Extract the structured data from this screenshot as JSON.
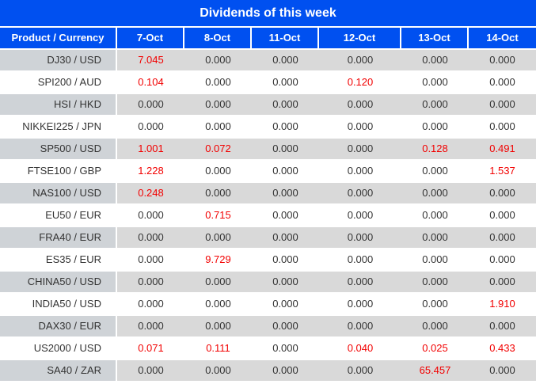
{
  "title": "Dividends of this week",
  "columns": [
    "Product / Currency",
    "7-Oct",
    "8-Oct",
    "11-Oct",
    "12-Oct",
    "13-Oct",
    "14-Oct"
  ],
  "rows": [
    {
      "product": "DJ30 / USD",
      "values": [
        {
          "v": "7.045",
          "red": true
        },
        {
          "v": "0.000",
          "red": false
        },
        {
          "v": "0.000",
          "red": false
        },
        {
          "v": "0.000",
          "red": false
        },
        {
          "v": "0.000",
          "red": false
        },
        {
          "v": "0.000",
          "red": false
        }
      ]
    },
    {
      "product": "SPI200 / AUD",
      "values": [
        {
          "v": "0.104",
          "red": true
        },
        {
          "v": "0.000",
          "red": false
        },
        {
          "v": "0.000",
          "red": false
        },
        {
          "v": "0.120",
          "red": true
        },
        {
          "v": "0.000",
          "red": false
        },
        {
          "v": "0.000",
          "red": false
        }
      ]
    },
    {
      "product": "HSI / HKD",
      "values": [
        {
          "v": "0.000",
          "red": false
        },
        {
          "v": "0.000",
          "red": false
        },
        {
          "v": "0.000",
          "red": false
        },
        {
          "v": "0.000",
          "red": false
        },
        {
          "v": "0.000",
          "red": false
        },
        {
          "v": "0.000",
          "red": false
        }
      ]
    },
    {
      "product": "NIKKEI225 / JPN",
      "values": [
        {
          "v": "0.000",
          "red": false
        },
        {
          "v": "0.000",
          "red": false
        },
        {
          "v": "0.000",
          "red": false
        },
        {
          "v": "0.000",
          "red": false
        },
        {
          "v": "0.000",
          "red": false
        },
        {
          "v": "0.000",
          "red": false
        }
      ]
    },
    {
      "product": "SP500 / USD",
      "values": [
        {
          "v": "1.001",
          "red": true
        },
        {
          "v": "0.072",
          "red": true
        },
        {
          "v": "0.000",
          "red": false
        },
        {
          "v": "0.000",
          "red": false
        },
        {
          "v": "0.128",
          "red": true
        },
        {
          "v": "0.491",
          "red": true
        }
      ]
    },
    {
      "product": "FTSE100 / GBP",
      "values": [
        {
          "v": "1.228",
          "red": true
        },
        {
          "v": "0.000",
          "red": false
        },
        {
          "v": "0.000",
          "red": false
        },
        {
          "v": "0.000",
          "red": false
        },
        {
          "v": "0.000",
          "red": false
        },
        {
          "v": "1.537",
          "red": true
        }
      ]
    },
    {
      "product": "NAS100 / USD",
      "values": [
        {
          "v": "0.248",
          "red": true
        },
        {
          "v": "0.000",
          "red": false
        },
        {
          "v": "0.000",
          "red": false
        },
        {
          "v": "0.000",
          "red": false
        },
        {
          "v": "0.000",
          "red": false
        },
        {
          "v": "0.000",
          "red": false
        }
      ]
    },
    {
      "product": "EU50 / EUR",
      "values": [
        {
          "v": "0.000",
          "red": false
        },
        {
          "v": "0.715",
          "red": true
        },
        {
          "v": "0.000",
          "red": false
        },
        {
          "v": "0.000",
          "red": false
        },
        {
          "v": "0.000",
          "red": false
        },
        {
          "v": "0.000",
          "red": false
        }
      ]
    },
    {
      "product": "FRA40 / EUR",
      "values": [
        {
          "v": "0.000",
          "red": false
        },
        {
          "v": "0.000",
          "red": false
        },
        {
          "v": "0.000",
          "red": false
        },
        {
          "v": "0.000",
          "red": false
        },
        {
          "v": "0.000",
          "red": false
        },
        {
          "v": "0.000",
          "red": false
        }
      ]
    },
    {
      "product": "ES35 / EUR",
      "values": [
        {
          "v": "0.000",
          "red": false
        },
        {
          "v": "9.729",
          "red": true
        },
        {
          "v": "0.000",
          "red": false
        },
        {
          "v": "0.000",
          "red": false
        },
        {
          "v": "0.000",
          "red": false
        },
        {
          "v": "0.000",
          "red": false
        }
      ]
    },
    {
      "product": "CHINA50 / USD",
      "values": [
        {
          "v": "0.000",
          "red": false
        },
        {
          "v": "0.000",
          "red": false
        },
        {
          "v": "0.000",
          "red": false
        },
        {
          "v": "0.000",
          "red": false
        },
        {
          "v": "0.000",
          "red": false
        },
        {
          "v": "0.000",
          "red": false
        }
      ]
    },
    {
      "product": "INDIA50 / USD",
      "values": [
        {
          "v": "0.000",
          "red": false
        },
        {
          "v": "0.000",
          "red": false
        },
        {
          "v": "0.000",
          "red": false
        },
        {
          "v": "0.000",
          "red": false
        },
        {
          "v": "0.000",
          "red": false
        },
        {
          "v": "1.910",
          "red": true
        }
      ]
    },
    {
      "product": "DAX30 / EUR",
      "values": [
        {
          "v": "0.000",
          "red": false
        },
        {
          "v": "0.000",
          "red": false
        },
        {
          "v": "0.000",
          "red": false
        },
        {
          "v": "0.000",
          "red": false
        },
        {
          "v": "0.000",
          "red": false
        },
        {
          "v": "0.000",
          "red": false
        }
      ]
    },
    {
      "product": "US2000 / USD",
      "values": [
        {
          "v": "0.071",
          "red": true
        },
        {
          "v": "0.111",
          "red": true
        },
        {
          "v": "0.000",
          "red": false
        },
        {
          "v": "0.040",
          "red": true
        },
        {
          "v": "0.025",
          "red": true
        },
        {
          "v": "0.433",
          "red": true
        }
      ]
    },
    {
      "product": "SA40 / ZAR",
      "values": [
        {
          "v": "0.000",
          "red": false
        },
        {
          "v": "0.000",
          "red": false
        },
        {
          "v": "0.000",
          "red": false
        },
        {
          "v": "0.000",
          "red": false
        },
        {
          "v": "65.457",
          "red": true
        },
        {
          "v": "0.000",
          "red": false
        }
      ]
    }
  ],
  "colors": {
    "header_blue": "#0050F0",
    "value_red": "#F20000",
    "product_col_gray": "#CFD3D7",
    "value_col_gray": "#D9D9D9",
    "text_dark": "#333333"
  }
}
